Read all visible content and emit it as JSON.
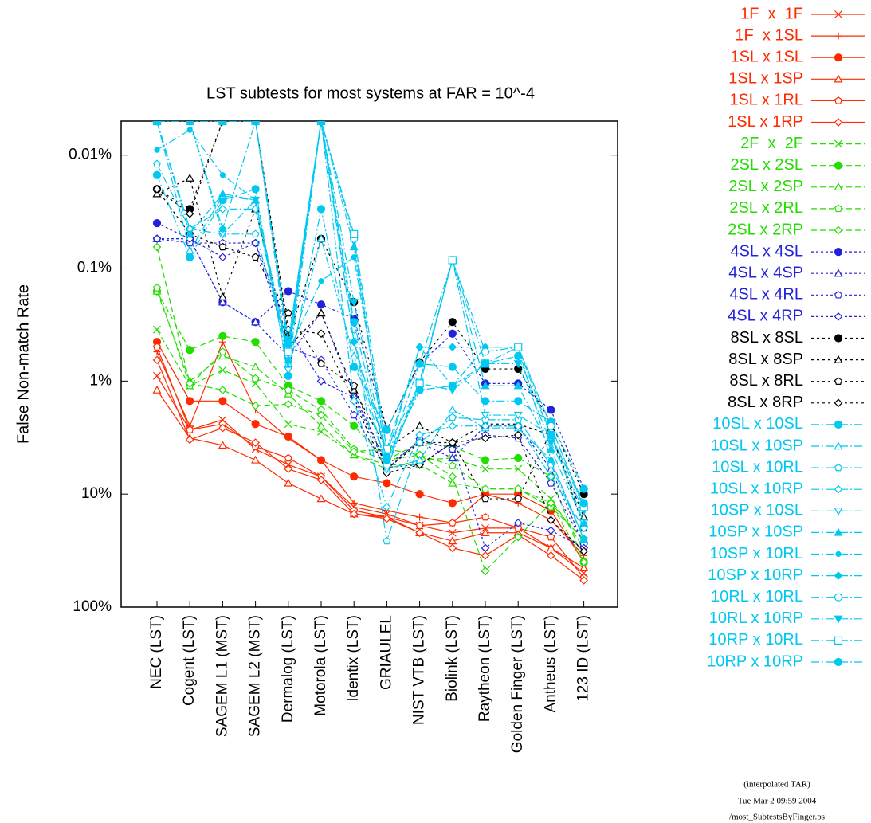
{
  "chart_data": {
    "type": "line",
    "title": "LST subtests for most systems at FAR = 10^-4",
    "y_label": "False Non-match Rate",
    "log_y": true,
    "categories": [
      "NEC (LST)",
      "Cogent (LST)",
      "SAGEM L1 (MST)",
      "SAGEM L2 (MST)",
      "Dermalog (LST)",
      "Motorola (LST)",
      "Identix (LST)",
      "GRIAULEL",
      "NIST VTB (LST)",
      "Biolink (LST)",
      "Raytheon (LST)",
      "Golden Finger (LST)",
      "Antheus (LST)",
      "123 ID (LST)"
    ],
    "ylim": [
      100,
      0.005
    ],
    "yticks": [
      {
        "value": 100,
        "label": "100%"
      },
      {
        "value": 10,
        "label": "10%"
      },
      {
        "value": 1,
        "label": "1%"
      },
      {
        "value": 0.1,
        "label": "0.1%"
      },
      {
        "value": 0.01,
        "label": "0.01%"
      }
    ],
    "notes": [
      "(interpolated TAR)",
      "Tue Mar  2 09:59 2004",
      "/most_SubtestsByFinger.ps"
    ],
    "series": [
      {
        "name": "1F  x  1F",
        "color": "#ff2a00",
        "dash": "solid",
        "marker": "x",
        "values": [
          0.9,
          2.7,
          2.2,
          4,
          5.5,
          7,
          13,
          15,
          19,
          22,
          20,
          20,
          30,
          50
        ]
      },
      {
        "name": "1F  x 1SL",
        "color": "#ff2a00",
        "dash": "solid",
        "marker": "plus",
        "values": [
          0.55,
          2.5,
          0.45,
          1.8,
          3.2,
          5,
          12,
          14,
          16,
          18,
          10,
          12,
          17,
          35
        ]
      },
      {
        "name": "1SL x 1SL",
        "color": "#ff2a00",
        "dash": "solid",
        "marker": "circle-filled",
        "values": [
          0.45,
          1.5,
          1.5,
          2.4,
          3.1,
          5,
          7,
          8,
          10,
          12,
          10,
          10,
          14,
          40
        ]
      },
      {
        "name": "1SL x 1SP",
        "color": "#ff2a00",
        "dash": "solid",
        "marker": "triangle",
        "values": [
          1.2,
          3.2,
          3.7,
          5,
          8,
          11,
          15,
          16,
          22,
          26,
          22,
          22,
          30,
          45
        ]
      },
      {
        "name": "1SL x 1RL",
        "color": "#ff2a00",
        "dash": "solid",
        "marker": "pentagon",
        "values": [
          0.5,
          2.7,
          2.4,
          3.8,
          4.8,
          7,
          14,
          16,
          19,
          18,
          16,
          20,
          24,
          55
        ]
      },
      {
        "name": "1SL x 1RP",
        "color": "#ff2a00",
        "dash": "solid",
        "marker": "diamond",
        "values": [
          0.65,
          3.3,
          2.6,
          3.5,
          6,
          7.5,
          15,
          16.5,
          22,
          30,
          35,
          23,
          35,
          58
        ]
      },
      {
        "name": "2F  x  2F",
        "color": "#22dd00",
        "dash": "green",
        "marker": "x",
        "values": [
          0.35,
          1.1,
          0.8,
          1.05,
          2.4,
          2.8,
          4.5,
          6,
          5,
          4.8,
          6,
          6,
          11,
          30
        ]
      },
      {
        "name": "2SL x 2SL",
        "color": "#22dd00",
        "dash": "green",
        "marker": "circle-filled",
        "values": [
          0.16,
          0.53,
          0.4,
          0.45,
          1.1,
          1.5,
          2.5,
          5,
          3.5,
          3.8,
          5,
          4.8,
          7,
          40
        ]
      },
      {
        "name": "2SL x 2SP",
        "color": "#22dd00",
        "dash": "green",
        "marker": "triangle",
        "values": [
          0.16,
          1.0,
          0.6,
          0.75,
          1.3,
          2.5,
          4.5,
          5.5,
          5.5,
          8,
          9,
          9,
          12,
          26
        ]
      },
      {
        "name": "2SL x 2RL",
        "color": "#22dd00",
        "dash": "green",
        "marker": "pentagon",
        "values": [
          0.15,
          1.1,
          0.55,
          0.95,
          1.2,
          1.8,
          4,
          5,
          4.5,
          5.6,
          9,
          9,
          13,
          25
        ]
      },
      {
        "name": "2SL x 2RP",
        "color": "#22dd00",
        "dash": "green",
        "marker": "diamond",
        "values": [
          0.065,
          1.05,
          1.2,
          1.65,
          1.6,
          2,
          4.2,
          4,
          4.5,
          7,
          48,
          24,
          12,
          40
        ]
      },
      {
        "name": "4SL x 4SL",
        "color": "#2222dd",
        "dash": "blue",
        "marker": "circle-filled",
        "values": [
          0.04,
          0.055,
          0.2,
          0.3,
          0.16,
          0.21,
          0.28,
          2.7,
          0.7,
          0.38,
          1.05,
          1.05,
          1.8,
          9
        ]
      },
      {
        "name": "4SL x 4SP",
        "color": "#2222dd",
        "dash": "blue",
        "marker": "triangle",
        "values": [
          0.055,
          0.055,
          0.2,
          0.3,
          0.6,
          0.25,
          1.3,
          5.5,
          3.5,
          4.8,
          2.5,
          2.5,
          6,
          28
        ]
      },
      {
        "name": "4SL x 4RL",
        "color": "#2222dd",
        "dash": "blue",
        "marker": "pentagon",
        "values": [
          0.055,
          0.06,
          0.06,
          0.06,
          0.5,
          0.65,
          2,
          6,
          3.3,
          4,
          3,
          3.2,
          8,
          28
        ]
      },
      {
        "name": "4SL x 4RP",
        "color": "#2222dd",
        "dash": "blue",
        "marker": "diamond",
        "values": [
          0.055,
          0.055,
          0.08,
          0.06,
          0.35,
          1.0,
          1.4,
          5.8,
          5.5,
          3.5,
          30,
          18,
          21,
          30
        ]
      },
      {
        "name": "8SL x 8SL",
        "color": "#000000",
        "dash": "black",
        "marker": "circle-filled",
        "values": [
          0.02,
          0.03,
          0.005,
          0.005,
          0.4,
          0.055,
          0.2,
          2.7,
          0.68,
          0.3,
          0.78,
          0.78,
          2.3,
          10
        ]
      },
      {
        "name": "8SL x 8SP",
        "color": "#000000",
        "dash": "black",
        "marker": "triangle",
        "values": [
          0.022,
          0.016,
          0.18,
          0.03,
          0.5,
          0.25,
          1.2,
          4,
          2.5,
          3.5,
          2.4,
          2.4,
          3,
          16
        ]
      },
      {
        "name": "8SL x 8RL",
        "color": "#000000",
        "dash": "black",
        "marker": "pentagon",
        "values": [
          0.02,
          0.05,
          0.065,
          0.08,
          0.25,
          0.7,
          1.1,
          6,
          3.5,
          3.5,
          11,
          11,
          2.8,
          20
        ]
      },
      {
        "name": "8SL x 8RP",
        "color": "#000000",
        "dash": "black",
        "marker": "diamond",
        "values": [
          0.02,
          0.033,
          0.005,
          0.005,
          0.35,
          0.38,
          1.5,
          6.5,
          5.5,
          3.5,
          3.2,
          3,
          17,
          32
        ]
      },
      {
        "name": "10SL x 10SL",
        "color": "#00c8f0",
        "dash": "cyan",
        "marker": "circle-filled",
        "values": [
          0.015,
          0.08,
          0.025,
          0.02,
          0.9,
          0.03,
          0.75,
          2.7,
          0.7,
          0.75,
          1.5,
          1.5,
          2.3,
          9
        ]
      },
      {
        "name": "10SL x 10SP",
        "color": "#00c8f0",
        "dash": "cyan",
        "marker": "triangle",
        "values": [
          0.005,
          0.07,
          0.023,
          0.025,
          0.7,
          0.055,
          0.6,
          6,
          5,
          1.8,
          2.6,
          2.6,
          5,
          25
        ]
      },
      {
        "name": "10SL x 10RL",
        "color": "#00c8f0",
        "dash": "cyan",
        "marker": "pentagon",
        "values": [
          0.012,
          0.045,
          0.05,
          0.05,
          0.5,
          0.005,
          0.35,
          26,
          3.5,
          2.1,
          2.2,
          2.2,
          5.5,
          25
        ]
      },
      {
        "name": "10SL x 10RP",
        "color": "#00c8f0",
        "dash": "cyan",
        "marker": "diamond",
        "values": [
          0.005,
          0.045,
          0.03,
          0.03,
          0.6,
          0.005,
          1.5,
          13,
          3,
          2.5,
          2.5,
          2.5,
          7,
          20
        ]
      },
      {
        "name": "10SP x 10SL",
        "color": "#00c8f0",
        "dash": "cyan",
        "marker": "triangle-down",
        "values": [
          0.005,
          0.005,
          0.05,
          0.025,
          0.8,
          0.005,
          0.45,
          6,
          1,
          0.085,
          2,
          2,
          3,
          18
        ]
      },
      {
        "name": "10SP x 10SP",
        "color": "#00c8f0",
        "dash": "cyan",
        "marker": "triangle-filled",
        "values": [
          0.005,
          0.05,
          0.022,
          0.025,
          0.65,
          0.005,
          0.065,
          5,
          0.7,
          0.085,
          1.1,
          1.1,
          4,
          18
        ]
      },
      {
        "name": "10SP x 10RL",
        "color": "#00c8f0",
        "dash": "cyan",
        "marker": "dot-filled",
        "values": [
          0.009,
          0.006,
          0.015,
          0.025,
          0.55,
          0.13,
          0.08,
          4,
          0.5,
          1.1,
          0.5,
          0.5,
          5,
          25
        ]
      },
      {
        "name": "10SP x 10RP",
        "color": "#00c8f0",
        "dash": "cyan",
        "marker": "diamond-filled",
        "values": [
          0.005,
          0.005,
          0.045,
          0.005,
          0.45,
          0.005,
          0.45,
          4.5,
          0.5,
          0.5,
          0.5,
          0.5,
          2.5,
          13
        ]
      },
      {
        "name": "10RL x 10RL",
        "color": "#00c8f0",
        "dash": "cyan",
        "marker": "circle",
        "values": [
          0.005,
          0.005,
          0.005,
          0.005,
          0.5,
          0.005,
          0.055,
          5.5,
          1.1,
          0.085,
          0.55,
          0.5,
          2.5,
          13
        ]
      },
      {
        "name": "10RL x 10RP",
        "color": "#00c8f0",
        "dash": "cyan",
        "marker": "triangle-down-filled",
        "values": [
          0.005,
          0.005,
          0.005,
          0.005,
          0.5,
          0.005,
          0.2,
          5,
          1.05,
          1.2,
          0.7,
          0.7,
          3.5,
          14
        ]
      },
      {
        "name": "10RP x 10RL",
        "color": "#00c8f0",
        "dash": "cyan",
        "marker": "square",
        "values": [
          0.005,
          0.005,
          0.005,
          0.005,
          0.55,
          0.005,
          0.05,
          4,
          1.05,
          0.085,
          0.7,
          0.5,
          3,
          13
        ]
      },
      {
        "name": "10RP x 10RP",
        "color": "#00c8f0",
        "dash": "cyan",
        "marker": "half-circle",
        "values": [
          0.005,
          0.005,
          0.005,
          0.005,
          0.45,
          0.005,
          0.3,
          5,
          1.2,
          1.1,
          0.7,
          0.6,
          3,
          12
        ]
      }
    ]
  }
}
